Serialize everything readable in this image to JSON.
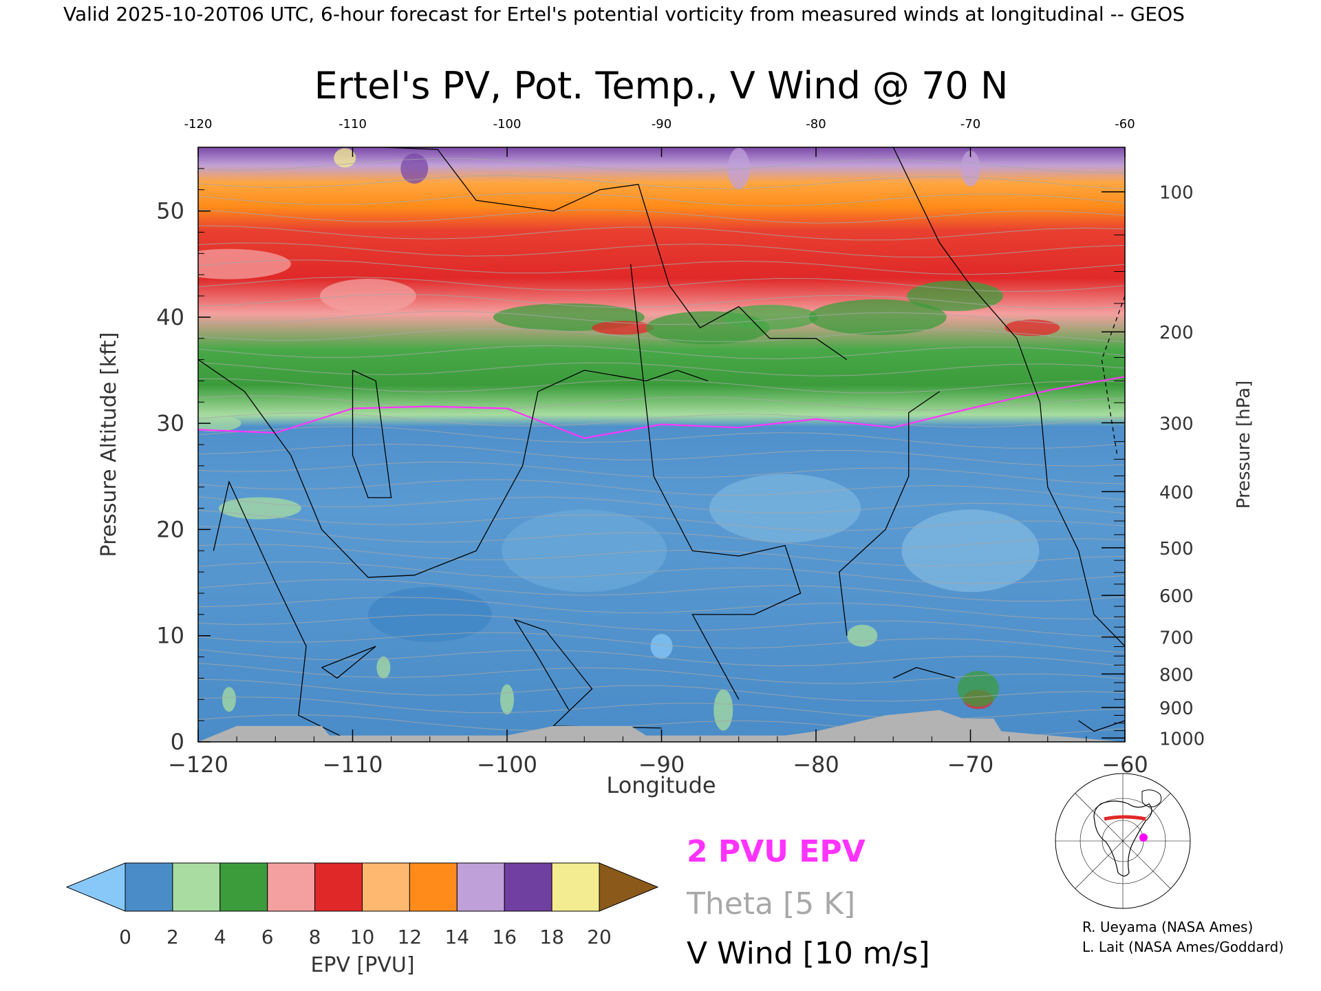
{
  "header": "Valid 2025-10-20T06 UTC, 6-hour forecast for Ertel's potential vorticity from measured winds at longitudinal -- GEOS",
  "credits": [
    "R. Ueyama (NASA Ames)",
    "L. Lait (NASA Ames/Goddard)"
  ],
  "legend": {
    "epv_contour": "2 PVU EPV",
    "theta": "Theta [5 K]",
    "vwind": "V Wind [10 m/s]"
  },
  "colors": {
    "epv_2pvu": "#ff33ff",
    "theta": "#a8a8a8",
    "vwind": "#000000",
    "terrain": "#b3b3b3"
  },
  "chart_data": {
    "type": "heatmap",
    "title": "Ertel's PV, Pot. Temp., V Wind @ 70 N",
    "xlabel": "Longitude",
    "ylabel": "Pressure Altitude [kft]",
    "y2label": "Pressure [hPa]",
    "xlim": [
      -120,
      -60
    ],
    "ylim": [
      0,
      56
    ],
    "x_ticks": [
      -120,
      -110,
      -100,
      -90,
      -80,
      -70,
      -60
    ],
    "y_ticks": [
      0,
      10,
      20,
      30,
      40,
      50
    ],
    "pressure_ticks": [
      100,
      200,
      300,
      400,
      500,
      600,
      700,
      800,
      900,
      1000
    ],
    "colorbar": {
      "label": "EPV [PVU]",
      "ticks": [
        0,
        2,
        4,
        6,
        8,
        10,
        12,
        14,
        16,
        18,
        20
      ],
      "extend": "both",
      "colors": [
        "#4a8cc8",
        "#a8dca0",
        "#3c9c3c",
        "#f4a0a0",
        "#e02828",
        "#ffb870",
        "#ff8c1a",
        "#c0a0d8",
        "#7040a0",
        "#f4ec90"
      ],
      "under_color": "#88c8f8",
      "over_color": "#8b5a1a"
    },
    "tropopause_kft": [
      {
        "lon": -120,
        "alt": 29
      },
      {
        "lon": -115,
        "alt": 29.5
      },
      {
        "lon": -110,
        "alt": 31
      },
      {
        "lon": -105,
        "alt": 32
      },
      {
        "lon": -100,
        "alt": 31
      },
      {
        "lon": -95,
        "alt": 29
      },
      {
        "lon": -90,
        "alt": 29.5
      },
      {
        "lon": -85,
        "alt": 30
      },
      {
        "lon": -80,
        "alt": 30
      },
      {
        "lon": -75,
        "alt": 30
      },
      {
        "lon": -70,
        "alt": 31
      },
      {
        "lon": -65,
        "alt": 33.5
      },
      {
        "lon": -60,
        "alt": 34
      }
    ]
  }
}
